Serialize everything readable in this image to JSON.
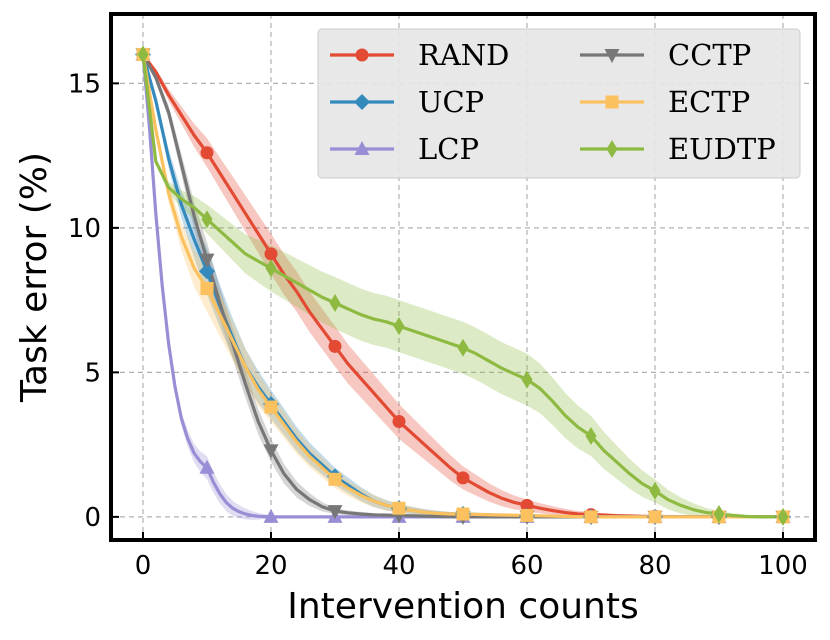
{
  "chart_data": {
    "type": "line",
    "title": "",
    "xlabel": "Intervention counts",
    "ylabel": "Task error (%)",
    "xlim": [
      -5,
      105
    ],
    "ylim": [
      -0.8,
      17.4
    ],
    "xticks": [
      0,
      20,
      40,
      60,
      80,
      100
    ],
    "yticks": [
      0,
      5,
      10,
      15
    ],
    "grid": true,
    "legend_position": "top-right",
    "legend_columns": 2,
    "series": [
      {
        "name": "RAND",
        "color": "#e24a33",
        "marker": "circle",
        "x": [
          0,
          10,
          20,
          30,
          40,
          50,
          60,
          70,
          80,
          90,
          100
        ],
        "values": [
          16.0,
          12.6,
          9.1,
          5.9,
          3.3,
          1.35,
          0.4,
          0.08,
          0.02,
          0.0,
          0.0
        ],
        "band": [
          0,
          0.5,
          0.7,
          0.7,
          0.6,
          0.4,
          0.2,
          0.08,
          0.03,
          0.01,
          0.0
        ],
        "curve_x": [
          0,
          2,
          4,
          6,
          8,
          10,
          12,
          14,
          16,
          18,
          20,
          22,
          24,
          26,
          28,
          30,
          32,
          34,
          36,
          38,
          40,
          42,
          44,
          46,
          48,
          50,
          52,
          54,
          56,
          58,
          60,
          62,
          64,
          66,
          68,
          70,
          72,
          74,
          76,
          78,
          80,
          82,
          84,
          86,
          88,
          90,
          92,
          94,
          96,
          98,
          100
        ],
        "curve_y": [
          16.0,
          15.4,
          14.6,
          13.9,
          13.2,
          12.6,
          11.9,
          11.2,
          10.5,
          9.8,
          9.1,
          8.4,
          7.8,
          7.1,
          6.5,
          5.9,
          5.3,
          4.8,
          4.3,
          3.8,
          3.3,
          2.9,
          2.5,
          2.1,
          1.7,
          1.35,
          1.1,
          0.85,
          0.65,
          0.5,
          0.4,
          0.3,
          0.22,
          0.15,
          0.1,
          0.08,
          0.06,
          0.04,
          0.03,
          0.02,
          0.02,
          0.01,
          0.01,
          0.0,
          0.0,
          0.0,
          0.0,
          0.0,
          0.0,
          0.0,
          0.0
        ]
      },
      {
        "name": "UCP",
        "color": "#348abd",
        "marker": "diamond",
        "x": [
          0,
          10,
          20,
          30,
          40,
          50,
          60,
          70,
          80,
          90,
          100
        ],
        "values": [
          16.0,
          8.5,
          3.9,
          1.4,
          0.3,
          0.1,
          0.03,
          0.0,
          0.0,
          0.0,
          0.0
        ],
        "band": [
          0,
          0.8,
          0.5,
          0.3,
          0.15,
          0.05,
          0.02,
          0.0,
          0.0,
          0.0,
          0.0
        ],
        "curve_x": [
          0,
          2,
          4,
          6,
          8,
          10,
          12,
          14,
          16,
          18,
          20,
          22,
          24,
          26,
          28,
          30,
          32,
          34,
          36,
          38,
          40,
          42,
          44,
          46,
          48,
          50,
          55,
          60,
          65,
          70,
          75,
          80,
          85,
          90,
          95,
          100
        ],
        "curve_y": [
          16.0,
          14.4,
          12.4,
          10.8,
          9.6,
          8.5,
          7.3,
          6.2,
          5.2,
          4.5,
          3.9,
          3.3,
          2.7,
          2.2,
          1.8,
          1.4,
          1.1,
          0.8,
          0.55,
          0.4,
          0.3,
          0.22,
          0.16,
          0.12,
          0.1,
          0.1,
          0.06,
          0.03,
          0.01,
          0.0,
          0.0,
          0.0,
          0.0,
          0.0,
          0.0,
          0.0
        ]
      },
      {
        "name": "LCP",
        "color": "#988ed5",
        "marker": "triangle-up",
        "x": [
          0,
          10,
          20,
          30,
          40,
          50,
          60,
          70,
          80,
          90,
          100
        ],
        "values": [
          16.0,
          1.7,
          0.0,
          0.0,
          0.0,
          0.0,
          0.0,
          0.0,
          0.0,
          0.0,
          0.0
        ],
        "band": [
          0,
          0.4,
          0.05,
          0.0,
          0.0,
          0.0,
          0.0,
          0.0,
          0.0,
          0.0,
          0.0
        ],
        "curve_x": [
          0,
          1,
          2,
          3,
          4,
          5,
          6,
          7,
          8,
          9,
          10,
          11,
          12,
          13,
          14,
          15,
          16,
          17,
          18,
          19,
          20,
          25,
          30,
          40,
          50,
          60,
          70,
          80,
          90,
          100
        ],
        "curve_y": [
          16.0,
          13.5,
          10.5,
          8.0,
          6.0,
          4.5,
          3.4,
          2.7,
          2.2,
          1.9,
          1.7,
          1.2,
          0.8,
          0.5,
          0.3,
          0.18,
          0.1,
          0.05,
          0.02,
          0.01,
          0.0,
          0.0,
          0.0,
          0.0,
          0.0,
          0.0,
          0.0,
          0.0,
          0.0,
          0.0
        ]
      },
      {
        "name": "CCTP",
        "color": "#777777",
        "marker": "triangle-down",
        "x": [
          0,
          10,
          20,
          30,
          40,
          50,
          60,
          70,
          80,
          90,
          100
        ],
        "values": [
          16.0,
          8.9,
          2.3,
          0.2,
          0.05,
          0.0,
          0.0,
          0.0,
          0.0,
          0.0,
          0.0
        ],
        "band": [
          0,
          0.6,
          0.4,
          0.1,
          0.03,
          0.0,
          0.0,
          0.0,
          0.0,
          0.0,
          0.0
        ],
        "curve_x": [
          0,
          2,
          4,
          6,
          8,
          10,
          12,
          14,
          16,
          18,
          20,
          22,
          24,
          26,
          28,
          30,
          32,
          34,
          36,
          38,
          40,
          45,
          50,
          60,
          70,
          80,
          90,
          100
        ],
        "curve_y": [
          16.0,
          15.2,
          14.0,
          12.2,
          10.4,
          8.9,
          7.4,
          6.0,
          4.6,
          3.3,
          2.3,
          1.5,
          0.95,
          0.6,
          0.35,
          0.2,
          0.14,
          0.1,
          0.07,
          0.06,
          0.05,
          0.02,
          0.0,
          0.0,
          0.0,
          0.0,
          0.0,
          0.0
        ]
      },
      {
        "name": "ECTP",
        "color": "#fbc15e",
        "marker": "square",
        "x": [
          0,
          10,
          20,
          30,
          40,
          50,
          60,
          70,
          80,
          90,
          100
        ],
        "values": [
          16.0,
          7.9,
          3.8,
          1.3,
          0.3,
          0.1,
          0.05,
          0.0,
          0.0,
          0.0,
          0.0
        ],
        "band": [
          0,
          0.8,
          0.5,
          0.3,
          0.15,
          0.05,
          0.02,
          0.0,
          0.0,
          0.0,
          0.0
        ],
        "curve_x": [
          0,
          2,
          4,
          6,
          8,
          10,
          12,
          14,
          16,
          18,
          20,
          22,
          24,
          26,
          28,
          30,
          32,
          34,
          36,
          38,
          40,
          42,
          44,
          46,
          48,
          50,
          55,
          60,
          65,
          70,
          75,
          80,
          85,
          90,
          95,
          100
        ],
        "curve_y": [
          16.0,
          13.4,
          11.2,
          9.7,
          8.6,
          7.9,
          7.0,
          6.1,
          5.2,
          4.4,
          3.8,
          3.2,
          2.6,
          2.1,
          1.7,
          1.3,
          1.0,
          0.75,
          0.55,
          0.4,
          0.3,
          0.22,
          0.16,
          0.12,
          0.1,
          0.1,
          0.07,
          0.05,
          0.02,
          0.0,
          0.0,
          0.0,
          0.0,
          0.0,
          0.0,
          0.0
        ]
      },
      {
        "name": "EUDTP",
        "color": "#8eba42",
        "marker": "diamond-thin",
        "x": [
          0,
          10,
          20,
          30,
          40,
          50,
          60,
          70,
          80,
          90,
          100
        ],
        "values": [
          16.0,
          10.3,
          8.6,
          7.4,
          6.6,
          5.85,
          4.75,
          2.8,
          0.9,
          0.1,
          0.0
        ],
        "band": [
          0,
          0.5,
          0.8,
          0.9,
          0.9,
          0.9,
          0.9,
          0.7,
          0.4,
          0.1,
          0.0
        ],
        "curve_x": [
          0,
          2,
          4,
          6,
          8,
          10,
          12,
          14,
          16,
          18,
          20,
          22,
          24,
          26,
          28,
          30,
          32,
          34,
          36,
          38,
          40,
          42,
          44,
          46,
          48,
          50,
          52,
          54,
          56,
          58,
          60,
          62,
          64,
          66,
          68,
          70,
          72,
          74,
          76,
          78,
          80,
          82,
          84,
          86,
          88,
          90,
          92,
          94,
          96,
          98,
          100
        ],
        "curve_y": [
          16.0,
          12.3,
          11.4,
          11.0,
          10.7,
          10.3,
          9.9,
          9.5,
          9.1,
          8.85,
          8.6,
          8.35,
          8.1,
          7.85,
          7.6,
          7.4,
          7.2,
          7.0,
          6.85,
          6.75,
          6.6,
          6.45,
          6.3,
          6.15,
          6.0,
          5.85,
          5.65,
          5.4,
          5.15,
          4.95,
          4.75,
          4.45,
          4.0,
          3.5,
          3.1,
          2.8,
          2.3,
          1.9,
          1.5,
          1.15,
          0.9,
          0.6,
          0.4,
          0.25,
          0.15,
          0.1,
          0.05,
          0.02,
          0.0,
          0.0,
          0.0
        ]
      }
    ]
  }
}
